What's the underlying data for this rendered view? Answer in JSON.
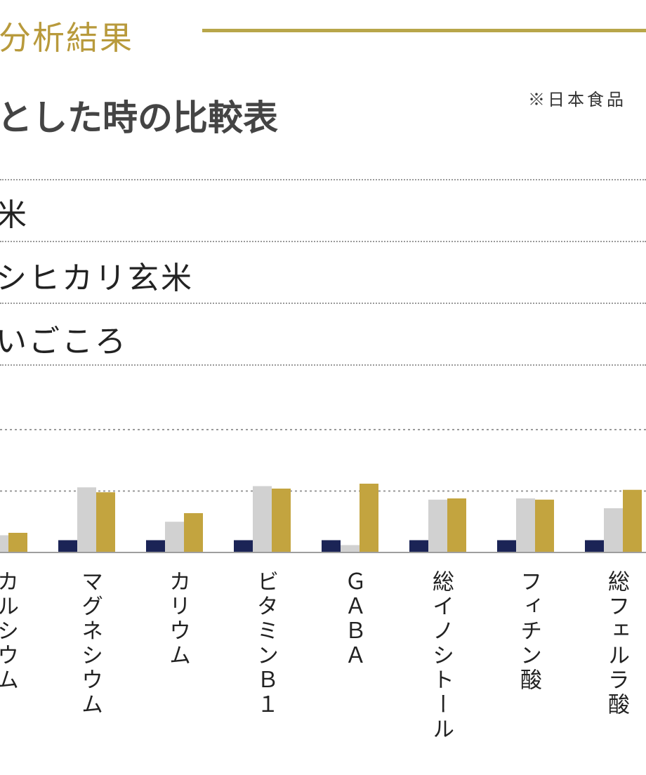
{
  "header": {
    "section_title": "分析結果",
    "subtitle": "とした時の比較表",
    "source_note": "※日本食品"
  },
  "chart_data": {
    "type": "bar",
    "title": "とした時の比較表",
    "categories": [
      "カルシウム",
      "マグネシウム",
      "カリウム",
      "ビタミンB1",
      "GABA",
      "総イノシトール",
      "フィチン酸",
      "総フェルラ酸"
    ],
    "category_labels": [
      "カルシウム",
      "マグネシウム",
      "カリウム",
      "ビタミンＢ１",
      "ＧＡＢＡ",
      "総イノシトール",
      "フィチン酸",
      "総フェルラ酸"
    ],
    "series": [
      {
        "name": "米",
        "color": "#1b2456",
        "values": [
          1.0,
          1.0,
          1.0,
          1.0,
          1.0,
          1.0,
          1.0,
          1.0
        ]
      },
      {
        "name": "シヒカリ玄米",
        "color": "#d1d1d1",
        "values": [
          1.4,
          5.3,
          2.5,
          5.4,
          0.6,
          4.3,
          4.4,
          3.6
        ]
      },
      {
        "name": "いごころ",
        "color": "#c3a43f",
        "values": [
          1.6,
          4.9,
          3.2,
          5.2,
          5.6,
          4.4,
          4.3,
          5.1
        ]
      }
    ],
    "ylim": [
      0,
      5.5
    ],
    "grid": true,
    "legend": "top-left"
  }
}
